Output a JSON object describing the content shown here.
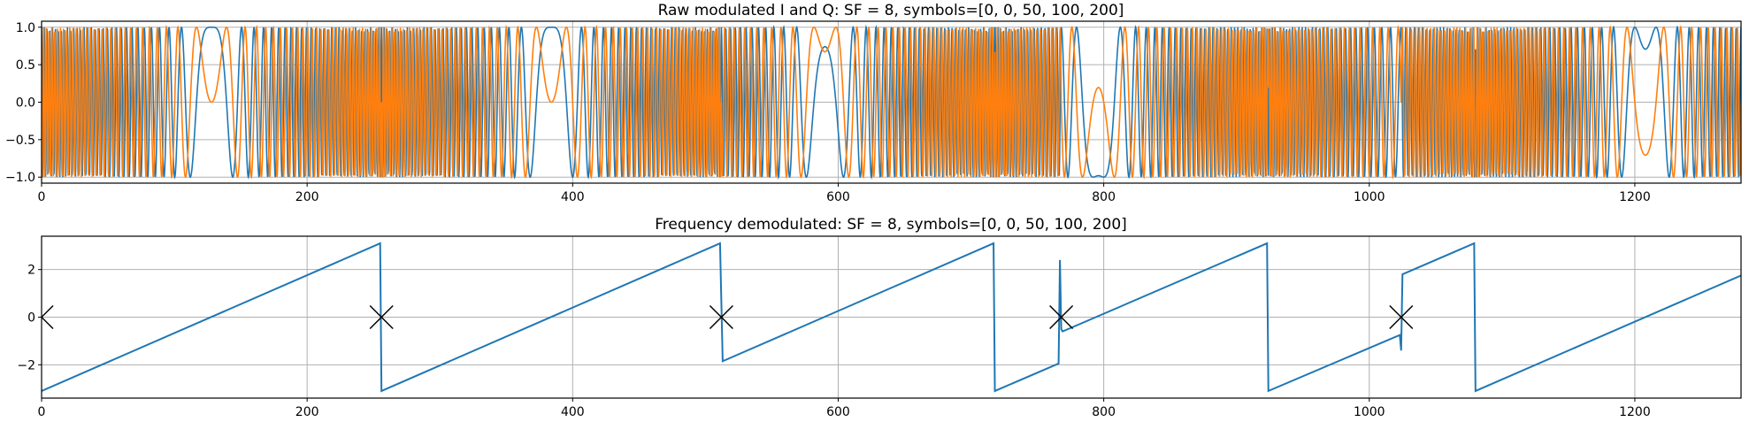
{
  "chart_data": [
    {
      "type": "line",
      "title": "Raw modulated I and Q: SF = 8, symbols=[0, 0, 50, 100, 200]",
      "xlabel": "",
      "ylabel": "",
      "xlim": [
        0,
        1280
      ],
      "ylim": [
        -1.08,
        1.08
      ],
      "grid": true,
      "x_ticks": [
        0,
        200,
        400,
        600,
        800,
        1000,
        1200
      ],
      "y_ticks": [
        1.0,
        0.5,
        0.0,
        -0.5,
        -1.0
      ],
      "x_tick_labels": [
        "0",
        "200",
        "400",
        "600",
        "800",
        "1000",
        "1200"
      ],
      "y_tick_labels": [
        "1.0",
        "0.5",
        "0.0",
        "−0.5",
        "−1.0"
      ],
      "N": 256,
      "symbols": [
        0,
        0,
        50,
        100,
        200
      ],
      "series": [
        {
          "component": "cos",
          "color": "#1f77b4"
        },
        {
          "component": "sin",
          "color": "#ff7f0e"
        }
      ]
    },
    {
      "type": "line",
      "title": "Frequency demodulated: SF = 8, symbols=[0, 0, 50, 100, 200]",
      "xlabel": "",
      "ylabel": "",
      "xlim": [
        0,
        1280
      ],
      "ylim": [
        -3.4,
        3.4
      ],
      "grid": true,
      "x_ticks": [
        0,
        200,
        400,
        600,
        800,
        1000,
        1200
      ],
      "y_ticks": [
        2,
        0,
        -2
      ],
      "x_tick_labels": [
        "0",
        "200",
        "400",
        "600",
        "800",
        "1000",
        "1200"
      ],
      "y_tick_labels": [
        "2",
        "0",
        "−2"
      ],
      "series": [
        {
          "color": "#1f77b4",
          "points": [
            [
              0,
              -3.1
            ],
            [
              255,
              3.1
            ],
            [
              256,
              -3.1
            ],
            [
              511,
              3.1
            ],
            [
              513,
              -1.85
            ],
            [
              717,
              3.1
            ],
            [
              718,
              -3.1
            ],
            [
              766,
              -1.95
            ],
            [
              767,
              2.4
            ],
            [
              768,
              -0.5
            ],
            [
              769,
              -0.6
            ],
            [
              923,
              3.1
            ],
            [
              924,
              -3.1
            ],
            [
              1023,
              -0.75
            ],
            [
              1024,
              -1.4
            ],
            [
              1025,
              1.8
            ],
            [
              1079,
              3.1
            ],
            [
              1080,
              -3.1
            ],
            [
              1280,
              1.75
            ]
          ]
        }
      ],
      "markers": {
        "shape": "x",
        "color": "#000000",
        "points": [
          [
            0,
            0
          ],
          [
            256,
            0
          ],
          [
            512,
            0
          ],
          [
            768,
            0
          ],
          [
            1024,
            0
          ]
        ]
      }
    }
  ]
}
